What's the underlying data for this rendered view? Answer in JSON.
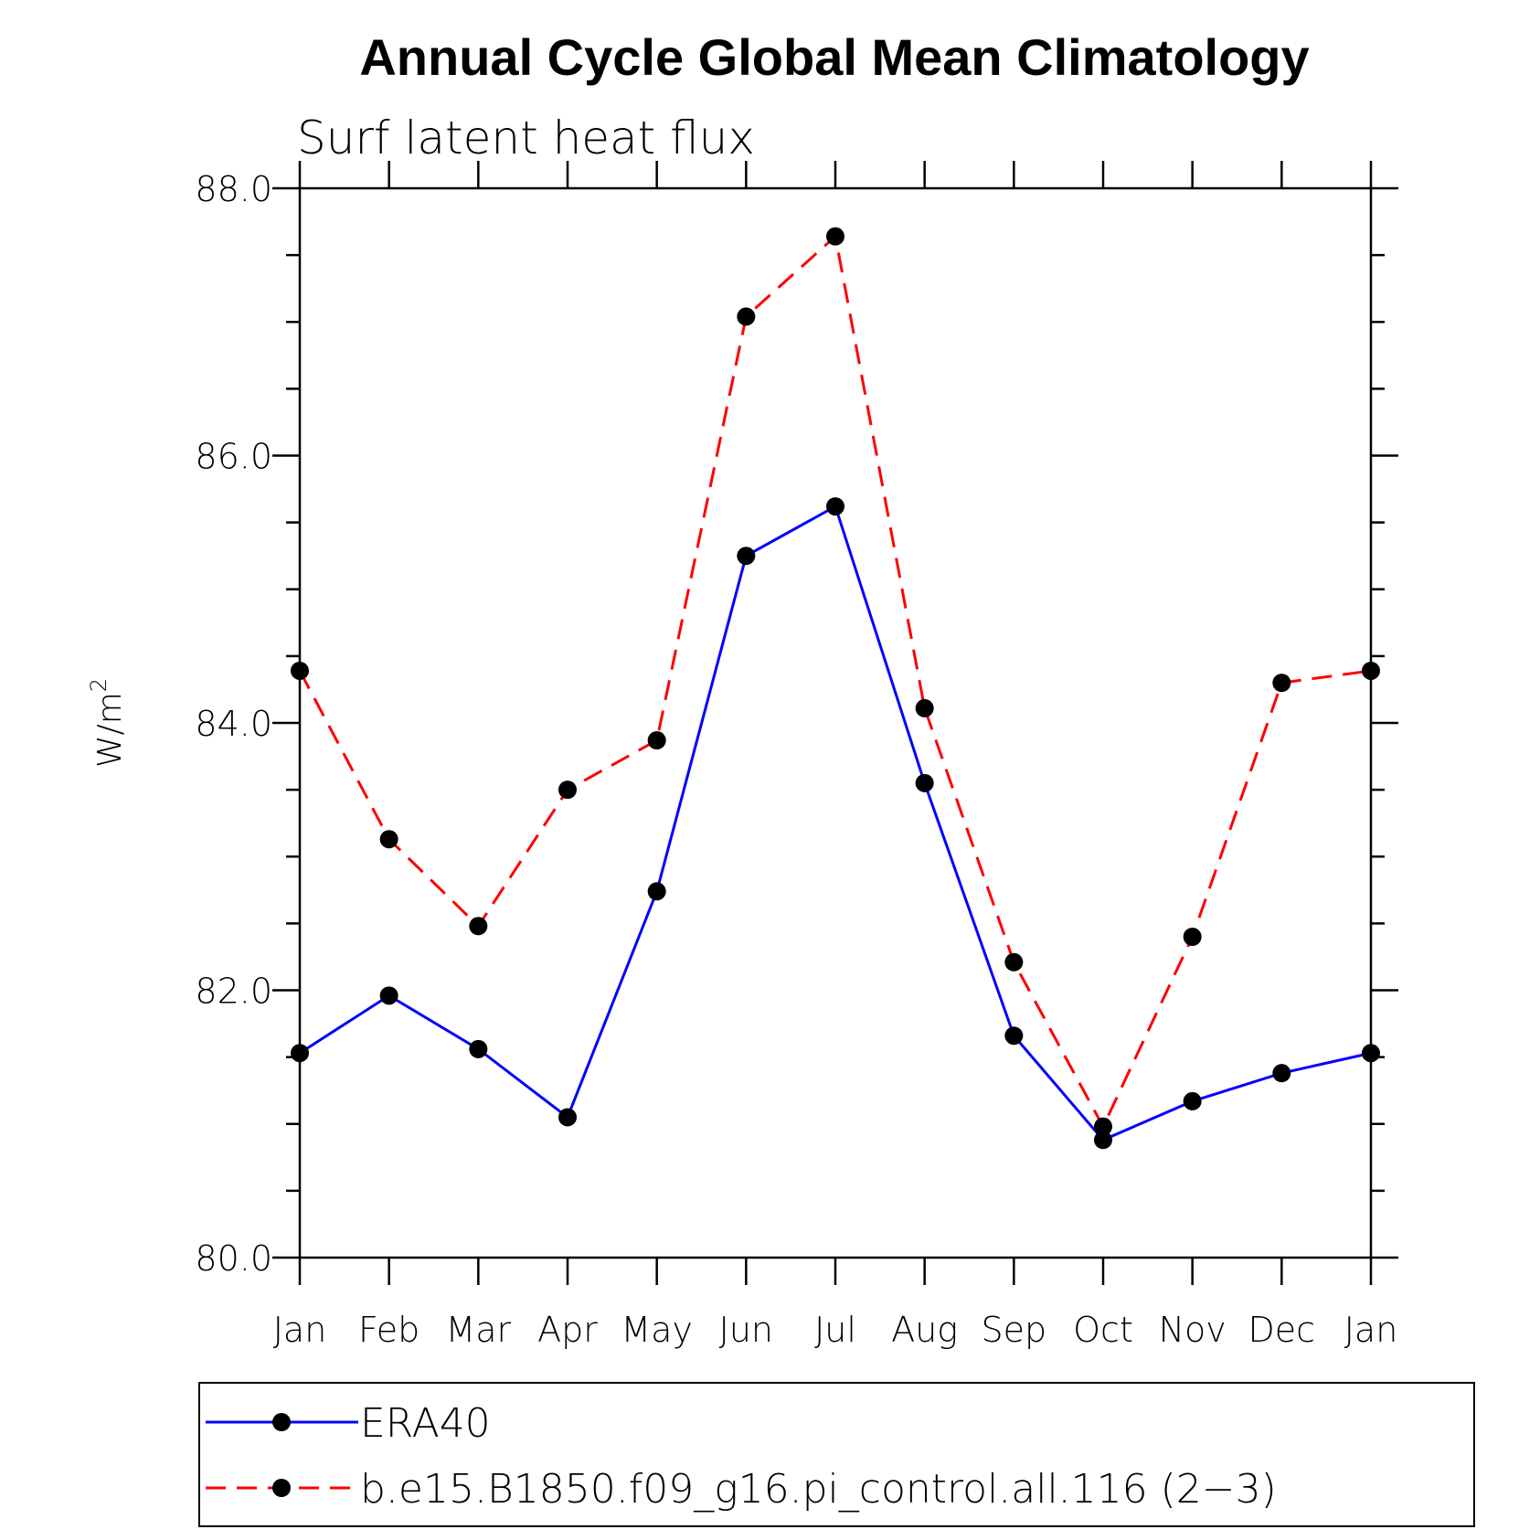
{
  "chart_data": {
    "type": "line",
    "title": "Annual Cycle Global Mean Climatology",
    "subtitle": "Surf latent heat flux",
    "ylabel_base": "W/m",
    "ylabel_sup": "2",
    "categories": [
      "Jan",
      "Feb",
      "Mar",
      "Apr",
      "May",
      "Jun",
      "Jul",
      "Aug",
      "Sep",
      "Oct",
      "Nov",
      "Dec",
      "Jan"
    ],
    "ylim": [
      80.0,
      88.0
    ],
    "yticks": [
      "80.0",
      "82.0",
      "84.0",
      "86.0",
      "88.0"
    ],
    "legend_position": "bottom",
    "series": [
      {
        "name": "ERA40",
        "color": "#0000ff",
        "style": "solid",
        "values": [
          81.53,
          81.96,
          81.56,
          81.05,
          82.74,
          85.25,
          85.62,
          83.55,
          81.66,
          80.88,
          81.17,
          81.38,
          81.53
        ]
      },
      {
        "name": "b.e15.B1850.f09_g16.pi_control.all.116 (2−3)",
        "color": "#ff0000",
        "style": "dashed",
        "values": [
          84.39,
          83.13,
          82.48,
          83.5,
          83.87,
          87.04,
          87.64,
          84.11,
          82.21,
          80.98,
          82.4,
          84.3,
          84.39
        ]
      }
    ]
  }
}
